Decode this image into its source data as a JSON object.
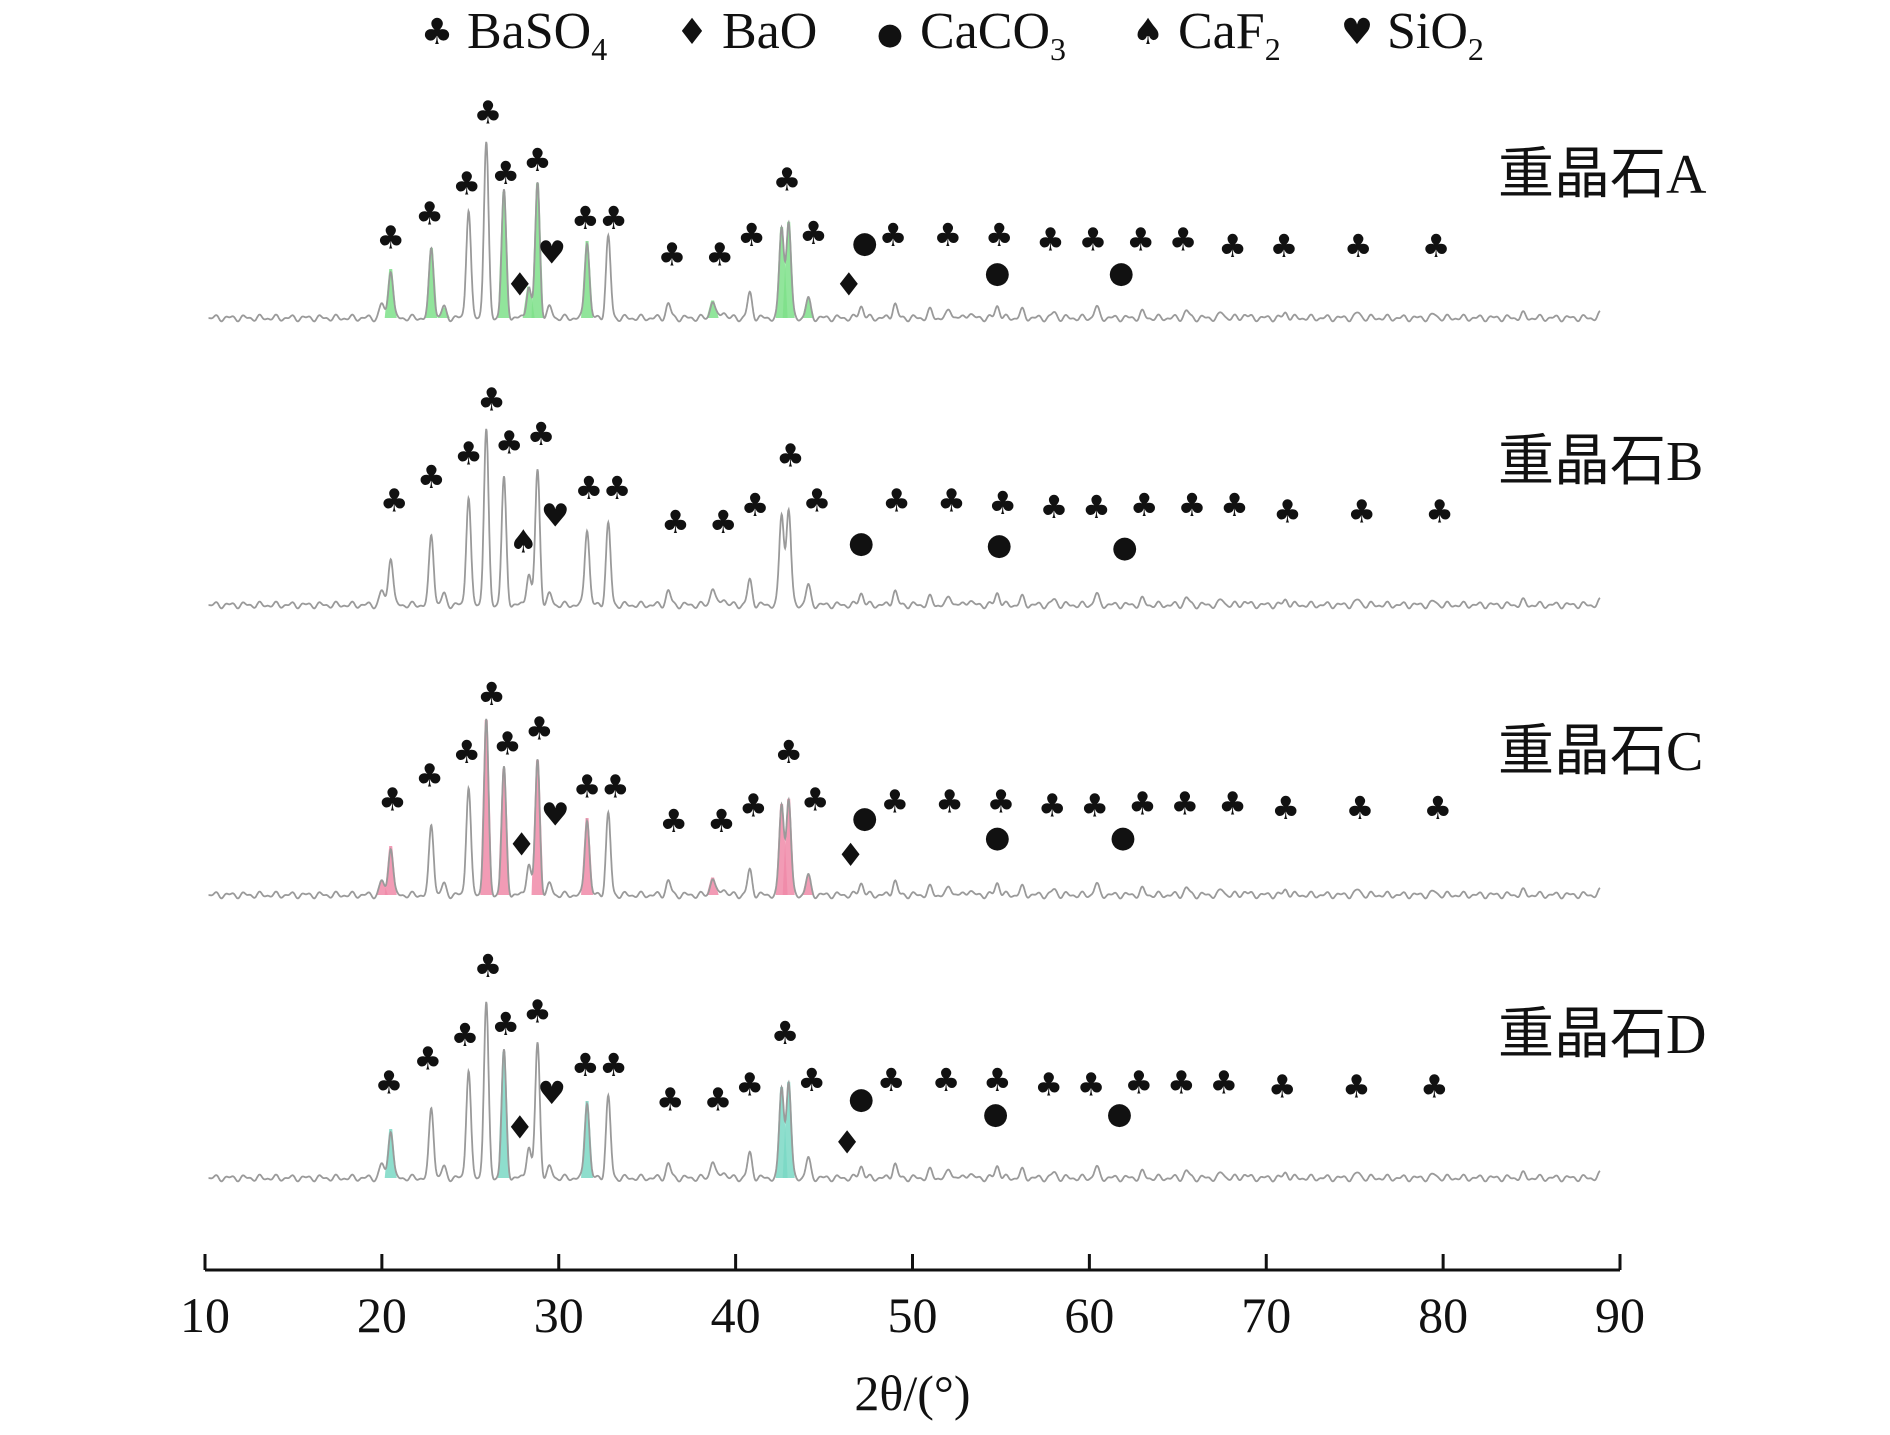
{
  "chart_data": {
    "type": "line",
    "xlabel": "2θ/(°)",
    "xlim": [
      10,
      90
    ],
    "xticks": [
      10,
      20,
      30,
      40,
      50,
      60,
      70,
      80,
      90
    ],
    "grid": false,
    "legend_position": "top-center",
    "legend": [
      {
        "phase": "BaSO4",
        "label_main": "BaSO",
        "label_sub": "4",
        "symbol": "♣",
        "icon": "club-icon"
      },
      {
        "phase": "BaO",
        "label_main": "BaO",
        "label_sub": "",
        "symbol": "♦",
        "icon": "diamond-icon"
      },
      {
        "phase": "CaCO3",
        "label_main": "CaCO",
        "label_sub": "3",
        "symbol": "●",
        "icon": "circle-icon"
      },
      {
        "phase": "CaF2",
        "label_main": "CaF",
        "label_sub": "2",
        "symbol": "♠",
        "icon": "spade-icon"
      },
      {
        "phase": "SiO2",
        "label_main": "SiO",
        "label_sub": "2",
        "symbol": "♥",
        "icon": "heart-icon"
      }
    ],
    "colors": {
      "trace": "#9a9a9a",
      "highlight_A": "#7ee08a",
      "highlight_C": "#f08aa8",
      "highlight_D": "#7ad8c4",
      "text": "#111111"
    },
    "peaks": [
      {
        "x": 20.0,
        "h": 0.08
      },
      {
        "x": 20.5,
        "h": 0.28
      },
      {
        "x": 22.8,
        "h": 0.4
      },
      {
        "x": 23.5,
        "h": 0.06
      },
      {
        "x": 24.9,
        "h": 0.62
      },
      {
        "x": 25.9,
        "h": 1.0
      },
      {
        "x": 26.9,
        "h": 0.72
      },
      {
        "x": 28.3,
        "h": 0.18
      },
      {
        "x": 28.8,
        "h": 0.77
      },
      {
        "x": 29.5,
        "h": 0.06
      },
      {
        "x": 31.6,
        "h": 0.44
      },
      {
        "x": 32.8,
        "h": 0.46
      },
      {
        "x": 36.2,
        "h": 0.08
      },
      {
        "x": 38.7,
        "h": 0.1
      },
      {
        "x": 39.3,
        "h": 0.04
      },
      {
        "x": 40.8,
        "h": 0.14
      },
      {
        "x": 42.6,
        "h": 0.52
      },
      {
        "x": 43.0,
        "h": 0.55
      },
      {
        "x": 44.1,
        "h": 0.11
      },
      {
        "x": 47.1,
        "h": 0.07
      },
      {
        "x": 49.0,
        "h": 0.08
      },
      {
        "x": 51.0,
        "h": 0.04
      },
      {
        "x": 52.1,
        "h": 0.05
      },
      {
        "x": 53.2,
        "h": 0.03
      },
      {
        "x": 54.8,
        "h": 0.07
      },
      {
        "x": 56.2,
        "h": 0.04
      },
      {
        "x": 58.0,
        "h": 0.03
      },
      {
        "x": 60.4,
        "h": 0.06
      },
      {
        "x": 63.0,
        "h": 0.03
      },
      {
        "x": 65.5,
        "h": 0.04
      },
      {
        "x": 67.5,
        "h": 0.03
      },
      {
        "x": 68.8,
        "h": 0.02
      },
      {
        "x": 71.1,
        "h": 0.03
      },
      {
        "x": 75.2,
        "h": 0.03
      },
      {
        "x": 79.5,
        "h": 0.02
      },
      {
        "x": 84.5,
        "h": 0.02
      },
      {
        "x": 88.9,
        "h": 0.02
      }
    ],
    "series": [
      {
        "name": "重晶石A",
        "highlight": "A",
        "markers": [
          {
            "s": "♣",
            "x": 20.5,
            "y": 0.38
          },
          {
            "s": "♣",
            "x": 22.7,
            "y": 0.49
          },
          {
            "s": "♣",
            "x": 24.8,
            "y": 0.63
          },
          {
            "s": "♣",
            "x": 26.0,
            "y": 0.96
          },
          {
            "s": "♣",
            "x": 27.0,
            "y": 0.68
          },
          {
            "s": "♣",
            "x": 28.8,
            "y": 0.74
          },
          {
            "s": "♦",
            "x": 27.8,
            "y": 0.16
          },
          {
            "s": "♥",
            "x": 29.6,
            "y": 0.31
          },
          {
            "s": "♣",
            "x": 31.5,
            "y": 0.47
          },
          {
            "s": "♣",
            "x": 33.1,
            "y": 0.47
          },
          {
            "s": "♣",
            "x": 36.4,
            "y": 0.3
          },
          {
            "s": "♣",
            "x": 39.1,
            "y": 0.3
          },
          {
            "s": "♣",
            "x": 40.9,
            "y": 0.39
          },
          {
            "s": "♣",
            "x": 42.9,
            "y": 0.65
          },
          {
            "s": "♣",
            "x": 44.4,
            "y": 0.4
          },
          {
            "s": "♦",
            "x": 46.4,
            "y": 0.16
          },
          {
            "s": "●",
            "x": 47.3,
            "y": 0.36
          },
          {
            "s": "♣",
            "x": 48.9,
            "y": 0.39
          },
          {
            "s": "♣",
            "x": 52.0,
            "y": 0.39
          },
          {
            "s": "♣",
            "x": 54.9,
            "y": 0.39
          },
          {
            "s": "●",
            "x": 54.8,
            "y": 0.22
          },
          {
            "s": "♣",
            "x": 57.8,
            "y": 0.37
          },
          {
            "s": "♣",
            "x": 60.2,
            "y": 0.37
          },
          {
            "s": "●",
            "x": 61.8,
            "y": 0.22
          },
          {
            "s": "♣",
            "x": 62.9,
            "y": 0.37
          },
          {
            "s": "♣",
            "x": 65.3,
            "y": 0.37
          },
          {
            "s": "♣",
            "x": 68.1,
            "y": 0.34
          },
          {
            "s": "♣",
            "x": 71.0,
            "y": 0.34
          },
          {
            "s": "♣",
            "x": 75.2,
            "y": 0.34
          },
          {
            "s": "♣",
            "x": 79.6,
            "y": 0.34
          }
        ]
      },
      {
        "name": "重晶石B",
        "highlight": "",
        "markers": [
          {
            "s": "♣",
            "x": 20.7,
            "y": 0.49
          },
          {
            "s": "♣",
            "x": 22.8,
            "y": 0.6
          },
          {
            "s": "♣",
            "x": 24.9,
            "y": 0.71
          },
          {
            "s": "♣",
            "x": 26.2,
            "y": 0.96
          },
          {
            "s": "♣",
            "x": 27.2,
            "y": 0.76
          },
          {
            "s": "♣",
            "x": 29.0,
            "y": 0.8
          },
          {
            "s": "♠",
            "x": 28.0,
            "y": 0.3
          },
          {
            "s": "♥",
            "x": 29.8,
            "y": 0.42
          },
          {
            "s": "♣",
            "x": 31.7,
            "y": 0.55
          },
          {
            "s": "♣",
            "x": 33.3,
            "y": 0.55
          },
          {
            "s": "♣",
            "x": 36.6,
            "y": 0.39
          },
          {
            "s": "♣",
            "x": 39.3,
            "y": 0.39
          },
          {
            "s": "♣",
            "x": 41.1,
            "y": 0.47
          },
          {
            "s": "♣",
            "x": 43.1,
            "y": 0.7
          },
          {
            "s": "♣",
            "x": 44.6,
            "y": 0.49
          },
          {
            "s": "●",
            "x": 47.1,
            "y": 0.3
          },
          {
            "s": "♣",
            "x": 49.1,
            "y": 0.49
          },
          {
            "s": "♣",
            "x": 52.2,
            "y": 0.49
          },
          {
            "s": "♣",
            "x": 55.1,
            "y": 0.48
          },
          {
            "s": "●",
            "x": 54.9,
            "y": 0.29
          },
          {
            "s": "♣",
            "x": 58.0,
            "y": 0.46
          },
          {
            "s": "♣",
            "x": 60.4,
            "y": 0.46
          },
          {
            "s": "●",
            "x": 62.0,
            "y": 0.28
          },
          {
            "s": "♣",
            "x": 63.1,
            "y": 0.47
          },
          {
            "s": "♣",
            "x": 65.8,
            "y": 0.47
          },
          {
            "s": "♣",
            "x": 68.2,
            "y": 0.47
          },
          {
            "s": "♣",
            "x": 71.2,
            "y": 0.44
          },
          {
            "s": "♣",
            "x": 75.4,
            "y": 0.44
          },
          {
            "s": "♣",
            "x": 79.8,
            "y": 0.44
          }
        ]
      },
      {
        "name": "重晶石C",
        "highlight": "C",
        "markers": [
          {
            "s": "♣",
            "x": 20.6,
            "y": 0.45
          },
          {
            "s": "♣",
            "x": 22.7,
            "y": 0.56
          },
          {
            "s": "♣",
            "x": 24.8,
            "y": 0.67
          },
          {
            "s": "♣",
            "x": 26.2,
            "y": 0.94
          },
          {
            "s": "♣",
            "x": 27.1,
            "y": 0.71
          },
          {
            "s": "♣",
            "x": 28.9,
            "y": 0.78
          },
          {
            "s": "♦",
            "x": 27.9,
            "y": 0.24
          },
          {
            "s": "♥",
            "x": 29.8,
            "y": 0.38
          },
          {
            "s": "♣",
            "x": 31.6,
            "y": 0.51
          },
          {
            "s": "♣",
            "x": 33.2,
            "y": 0.51
          },
          {
            "s": "♣",
            "x": 36.5,
            "y": 0.35
          },
          {
            "s": "♣",
            "x": 39.2,
            "y": 0.35
          },
          {
            "s": "♣",
            "x": 41.0,
            "y": 0.42
          },
          {
            "s": "♣",
            "x": 43.0,
            "y": 0.67
          },
          {
            "s": "♣",
            "x": 44.5,
            "y": 0.45
          },
          {
            "s": "♦",
            "x": 46.5,
            "y": 0.19
          },
          {
            "s": "●",
            "x": 47.3,
            "y": 0.37
          },
          {
            "s": "♣",
            "x": 49.0,
            "y": 0.44
          },
          {
            "s": "♣",
            "x": 52.1,
            "y": 0.44
          },
          {
            "s": "♣",
            "x": 55.0,
            "y": 0.44
          },
          {
            "s": "●",
            "x": 54.8,
            "y": 0.28
          },
          {
            "s": "♣",
            "x": 57.9,
            "y": 0.42
          },
          {
            "s": "♣",
            "x": 60.3,
            "y": 0.42
          },
          {
            "s": "●",
            "x": 61.9,
            "y": 0.28
          },
          {
            "s": "♣",
            "x": 63.0,
            "y": 0.43
          },
          {
            "s": "♣",
            "x": 65.4,
            "y": 0.43
          },
          {
            "s": "♣",
            "x": 68.1,
            "y": 0.43
          },
          {
            "s": "♣",
            "x": 71.1,
            "y": 0.41
          },
          {
            "s": "♣",
            "x": 75.3,
            "y": 0.41
          },
          {
            "s": "♣",
            "x": 79.7,
            "y": 0.41
          }
        ]
      },
      {
        "name": "重晶石D",
        "highlight": "D",
        "markers": [
          {
            "s": "♣",
            "x": 20.4,
            "y": 0.45
          },
          {
            "s": "♣",
            "x": 22.6,
            "y": 0.56
          },
          {
            "s": "♣",
            "x": 24.7,
            "y": 0.67
          },
          {
            "s": "♣",
            "x": 26.0,
            "y": 0.99
          },
          {
            "s": "♣",
            "x": 27.0,
            "y": 0.72
          },
          {
            "s": "♣",
            "x": 28.8,
            "y": 0.78
          },
          {
            "s": "♦",
            "x": 27.8,
            "y": 0.24
          },
          {
            "s": "♥",
            "x": 29.6,
            "y": 0.4
          },
          {
            "s": "♣",
            "x": 31.5,
            "y": 0.53
          },
          {
            "s": "♣",
            "x": 33.1,
            "y": 0.53
          },
          {
            "s": "♣",
            "x": 36.3,
            "y": 0.37
          },
          {
            "s": "♣",
            "x": 39.0,
            "y": 0.37
          },
          {
            "s": "♣",
            "x": 40.8,
            "y": 0.44
          },
          {
            "s": "♣",
            "x": 42.8,
            "y": 0.68
          },
          {
            "s": "♣",
            "x": 44.3,
            "y": 0.46
          },
          {
            "s": "♦",
            "x": 46.3,
            "y": 0.17
          },
          {
            "s": "●",
            "x": 47.1,
            "y": 0.38
          },
          {
            "s": "♣",
            "x": 48.8,
            "y": 0.46
          },
          {
            "s": "♣",
            "x": 51.9,
            "y": 0.46
          },
          {
            "s": "♣",
            "x": 54.8,
            "y": 0.46
          },
          {
            "s": "●",
            "x": 54.7,
            "y": 0.31
          },
          {
            "s": "♣",
            "x": 57.7,
            "y": 0.44
          },
          {
            "s": "♣",
            "x": 60.1,
            "y": 0.44
          },
          {
            "s": "●",
            "x": 61.7,
            "y": 0.31
          },
          {
            "s": "♣",
            "x": 62.8,
            "y": 0.45
          },
          {
            "s": "♣",
            "x": 65.2,
            "y": 0.45
          },
          {
            "s": "♣",
            "x": 67.6,
            "y": 0.45
          },
          {
            "s": "♣",
            "x": 70.9,
            "y": 0.43
          },
          {
            "s": "♣",
            "x": 75.1,
            "y": 0.43
          },
          {
            "s": "♣",
            "x": 79.5,
            "y": 0.43
          }
        ]
      }
    ]
  }
}
